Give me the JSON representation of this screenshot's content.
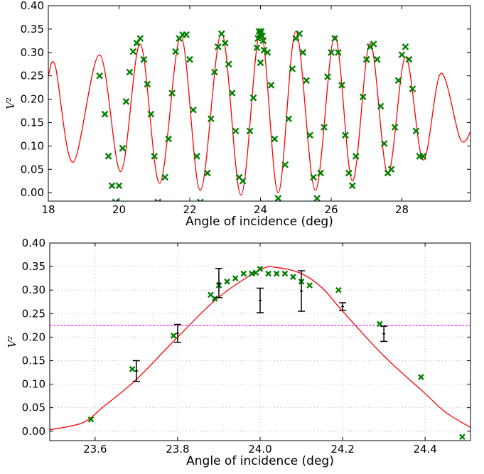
{
  "chart_data": [
    {
      "type": "scatter",
      "xlabel": "Angle of incidence (deg)",
      "ylabel": "V²",
      "xlim": [
        18,
        29.94
      ],
      "ylim": [
        -0.018,
        0.4
      ],
      "grid": false,
      "xticks": [
        18,
        20,
        22,
        24,
        26,
        28
      ],
      "yticks": [
        {
          "value": 0,
          "label": "0.00"
        },
        {
          "value": 0.05,
          "label": "0.05"
        },
        {
          "value": 0.1,
          "label": "0.10"
        },
        {
          "value": 0.15,
          "label": "0.15"
        },
        {
          "value": 0.2,
          "label": "0.20"
        },
        {
          "value": 0.25,
          "label": "0.25"
        },
        {
          "value": 0.3,
          "label": "0.30"
        },
        {
          "value": 0.35,
          "label": "0.35"
        },
        {
          "value": 0.4,
          "label": "0.40"
        }
      ],
      "series": [
        {
          "type": "line",
          "color": "#ff0000",
          "x": [
            18,
            18.2,
            18.7,
            19.45,
            20.05,
            20.6,
            21.15,
            21.75,
            22.3,
            22.9,
            23.45,
            24.0,
            24.5,
            25.0,
            25.55,
            26.1,
            26.6,
            27.1,
            27.6,
            28.1,
            28.6,
            29.1,
            29.65,
            29.94
          ],
          "values": [
            0.25,
            0.27,
            0.065,
            0.295,
            0.045,
            0.318,
            0.02,
            0.335,
            0.005,
            0.342,
            -0.005,
            0.347,
            0.0,
            0.345,
            0.005,
            0.335,
            0.025,
            0.32,
            0.04,
            0.29,
            0.07,
            0.255,
            0.115,
            0.13
          ]
        },
        {
          "type": "scatter",
          "color": "#008000",
          "x": [
            19.45,
            19.6,
            19.7,
            19.8,
            19.9,
            20.0,
            20.1,
            20.2,
            20.3,
            20.4,
            20.5,
            20.6,
            20.7,
            20.8,
            20.9,
            21.0,
            21.1,
            21.3,
            21.4,
            21.5,
            21.6,
            21.7,
            21.8,
            21.9,
            22.0,
            22.1,
            22.2,
            22.3,
            22.5,
            22.6,
            22.7,
            22.8,
            22.9,
            23.0,
            23.1,
            23.2,
            23.3,
            23.4,
            23.5,
            23.7,
            23.8,
            23.9,
            23.93,
            23.96,
            23.99,
            24.02,
            24.05,
            24.08,
            24.0,
            24.1,
            24.2,
            24.3,
            24.4,
            24.5,
            24.7,
            24.8,
            24.9,
            25.0,
            25.1,
            25.2,
            25.3,
            25.4,
            25.5,
            25.6,
            25.7,
            25.8,
            25.9,
            26.0,
            26.1,
            26.2,
            26.3,
            26.4,
            26.5,
            26.6,
            26.7,
            26.9,
            27.0,
            27.1,
            27.2,
            27.3,
            27.4,
            27.5,
            27.6,
            27.7,
            27.8,
            27.9,
            28.0,
            28.1,
            28.2,
            28.3,
            28.4,
            28.5,
            28.6
          ],
          "values": [
            0.25,
            0.168,
            0.078,
            0.015,
            -0.02,
            0.015,
            0.095,
            0.195,
            0.258,
            0.302,
            0.32,
            0.33,
            0.285,
            0.232,
            0.168,
            0.078,
            -0.02,
            0.033,
            0.115,
            0.213,
            0.302,
            0.33,
            0.338,
            0.338,
            0.285,
            0.177,
            0.078,
            -0.02,
            0.042,
            0.158,
            0.258,
            0.312,
            0.34,
            0.32,
            0.275,
            0.213,
            0.132,
            0.033,
            0.025,
            0.132,
            0.203,
            0.31,
            0.33,
            0.345,
            0.34,
            0.345,
            0.335,
            0.325,
            0.278,
            0.305,
            0.3,
            0.23,
            0.115,
            -0.012,
            0.06,
            0.158,
            0.265,
            0.33,
            0.34,
            0.3,
            0.24,
            0.123,
            0.033,
            -0.012,
            0.042,
            0.14,
            0.248,
            0.3,
            0.33,
            0.3,
            0.23,
            0.123,
            0.042,
            0.015,
            0.078,
            0.205,
            0.285,
            0.312,
            0.318,
            0.285,
            0.185,
            0.105,
            0.042,
            0.05,
            0.14,
            0.24,
            0.295,
            0.312,
            0.285,
            0.222,
            0.132,
            0.078,
            0.078
          ]
        }
      ]
    },
    {
      "type": "scatter",
      "xlabel": "Angle of incidence (deg)",
      "ylabel": "V²",
      "xlim": [
        23.49,
        24.51
      ],
      "ylim": [
        -0.02,
        0.4
      ],
      "grid": true,
      "xticks": [
        23.6,
        23.8,
        {
          "value": 24,
          "label": "24.0"
        },
        24.2,
        24.4
      ],
      "yticks": [
        {
          "value": 0,
          "label": "0.00"
        },
        {
          "value": 0.05,
          "label": "0.05"
        },
        {
          "value": 0.1,
          "label": "0.10"
        },
        {
          "value": 0.15,
          "label": "0.15"
        },
        {
          "value": 0.2,
          "label": "0.20"
        },
        {
          "value": 0.25,
          "label": "0.25"
        },
        {
          "value": 0.3,
          "label": "0.30"
        },
        {
          "value": 0.35,
          "label": "0.35"
        },
        {
          "value": 0.4,
          "label": "0.40"
        }
      ],
      "hline": 0.225,
      "hline_color": "#ff00ff",
      "series": [
        {
          "type": "line",
          "color": "#ff0000",
          "x": [
            23.49,
            23.57,
            23.62,
            23.7,
            23.8,
            23.9,
            24.0,
            24.04,
            24.1,
            24.15,
            24.2,
            24.3,
            24.4,
            24.45,
            24.51
          ],
          "values": [
            0.003,
            0.018,
            0.052,
            0.11,
            0.2,
            0.285,
            0.343,
            0.348,
            0.335,
            0.305,
            0.255,
            0.16,
            0.08,
            0.04,
            0.008
          ]
        },
        {
          "type": "scatter",
          "color": "#008000",
          "x": [
            23.59,
            23.69,
            23.79,
            23.88,
            23.89,
            23.9,
            23.92,
            23.94,
            23.96,
            23.98,
            23.99,
            24.0,
            24.02,
            24.04,
            24.06,
            24.08,
            24.1,
            24.12,
            24.19,
            24.29,
            24.39,
            24.49
          ],
          "values": [
            0.025,
            0.132,
            0.203,
            0.29,
            0.282,
            0.31,
            0.318,
            0.325,
            0.335,
            0.335,
            0.337,
            0.345,
            0.335,
            0.335,
            0.335,
            0.328,
            0.318,
            0.31,
            0.3,
            0.228,
            0.115,
            -0.012
          ]
        },
        {
          "type": "errorbar",
          "color": "#000000",
          "x": [
            23.7,
            23.8,
            23.9,
            24.0,
            24.1,
            24.2,
            24.3
          ],
          "values": [
            0.128,
            0.208,
            0.315,
            0.278,
            0.298,
            0.265,
            0.207
          ],
          "errors": [
            0.022,
            0.019,
            0.031,
            0.026,
            0.043,
            0.008,
            0.016
          ]
        }
      ]
    }
  ]
}
